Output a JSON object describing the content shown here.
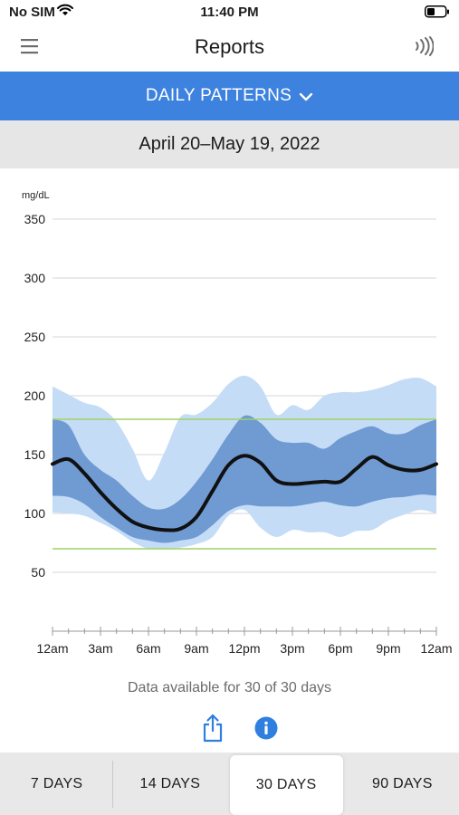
{
  "status_bar": {
    "carrier": "No SIM",
    "time": "11:40 PM"
  },
  "nav": {
    "title": "Reports",
    "menu_icon": "hamburger-icon",
    "nfc_icon": "nfc-scan-icon"
  },
  "view_selector": {
    "label": "DAILY PATTERNS",
    "icon": "chevron-down-icon"
  },
  "date_range": "April 20–May 19, 2022",
  "chart_data": {
    "type": "area",
    "ylabel": "mg/dL",
    "ylim": [
      0,
      350
    ],
    "yticks": [
      "350",
      "300",
      "250",
      "200",
      "150",
      "100",
      "50"
    ],
    "xticks": [
      "12am",
      "3am",
      "6am",
      "9am",
      "12pm",
      "3pm",
      "6pm",
      "9pm",
      "12am"
    ],
    "xlim": [
      0,
      24
    ],
    "target_range": [
      70,
      180
    ],
    "target_color": "#9fd460",
    "series": [
      {
        "role": "p10-p90",
        "color": "#c5dcf7",
        "x": [
          0,
          1,
          2,
          3,
          4,
          5,
          6,
          7,
          8,
          9,
          10,
          11,
          12,
          13,
          14,
          15,
          16,
          17,
          18,
          19,
          20,
          21,
          22,
          23,
          24
        ],
        "upper": [
          208,
          201,
          194,
          190,
          178,
          155,
          128,
          152,
          182,
          184,
          194,
          210,
          217,
          208,
          184,
          192,
          188,
          200,
          203,
          203,
          205,
          209,
          214,
          215,
          208
        ],
        "lower": [
          101,
          100,
          98,
          92,
          85,
          76,
          70,
          70,
          71,
          74,
          80,
          98,
          103,
          88,
          80,
          86,
          84,
          84,
          80,
          85,
          86,
          94,
          99,
          103,
          100
        ]
      },
      {
        "role": "p25-p75",
        "color": "#6f9ad2",
        "x": [
          0,
          1,
          2,
          3,
          4,
          5,
          6,
          7,
          8,
          9,
          10,
          11,
          12,
          13,
          14,
          15,
          16,
          17,
          18,
          19,
          20,
          21,
          22,
          23,
          24
        ],
        "upper": [
          180,
          175,
          150,
          137,
          128,
          115,
          105,
          104,
          112,
          127,
          146,
          167,
          183,
          177,
          163,
          160,
          160,
          155,
          164,
          170,
          174,
          168,
          168,
          175,
          180
        ],
        "lower": [
          115,
          114,
          108,
          97,
          88,
          80,
          77,
          75,
          77,
          80,
          90,
          102,
          107,
          106,
          106,
          106,
          108,
          110,
          107,
          106,
          110,
          113,
          114,
          116,
          115
        ]
      },
      {
        "role": "median",
        "color": "#111111",
        "x": [
          0,
          1,
          2,
          3,
          4,
          5,
          6,
          7,
          8,
          9,
          10,
          11,
          12,
          13,
          14,
          15,
          16,
          17,
          18,
          19,
          20,
          21,
          22,
          23,
          24
        ],
        "values": [
          142,
          146,
          134,
          118,
          104,
          93,
          88,
          86,
          87,
          97,
          119,
          141,
          149,
          143,
          128,
          125,
          126,
          127,
          127,
          138,
          148,
          141,
          137,
          137,
          142
        ]
      }
    ],
    "grid": true
  },
  "availability_text": "Data available for 30 of 30 days",
  "actions": {
    "share_icon": "share-icon",
    "info_icon": "info-icon",
    "accent": "#2f7fe0"
  },
  "period_tabs": [
    {
      "label": "7 DAYS",
      "selected": false
    },
    {
      "label": "14 DAYS",
      "selected": false
    },
    {
      "label": "30 DAYS",
      "selected": true
    },
    {
      "label": "90 DAYS",
      "selected": false
    }
  ]
}
